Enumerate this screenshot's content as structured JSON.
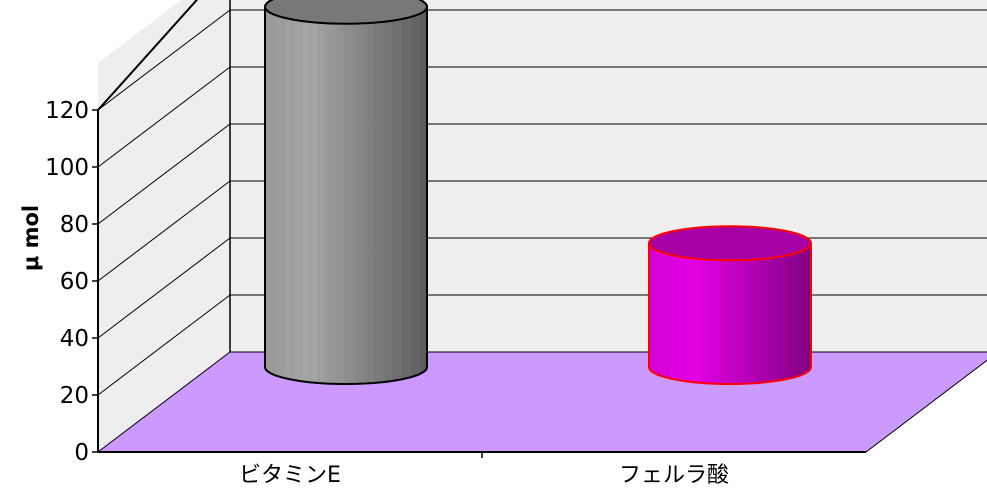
{
  "chart_data": {
    "type": "bar",
    "style": "3d-cylinder",
    "categories": [
      "ビタミンE",
      "フェルラ酸"
    ],
    "series": [
      {
        "values": [
          125,
          42
        ]
      }
    ],
    "bar_colors": [
      "#a6a6a6",
      "#e600e6"
    ],
    "bar_outline_colors": [
      "#000000",
      "#ff0000"
    ],
    "ylabel": "μ mol",
    "xlabel": "",
    "title": "",
    "ylim": [
      0,
      120
    ],
    "yticks": [
      0,
      20,
      40,
      60,
      80,
      100,
      120
    ],
    "grid": true,
    "wall_color": "#eeeeee",
    "floor_color": "#cc99ff"
  }
}
